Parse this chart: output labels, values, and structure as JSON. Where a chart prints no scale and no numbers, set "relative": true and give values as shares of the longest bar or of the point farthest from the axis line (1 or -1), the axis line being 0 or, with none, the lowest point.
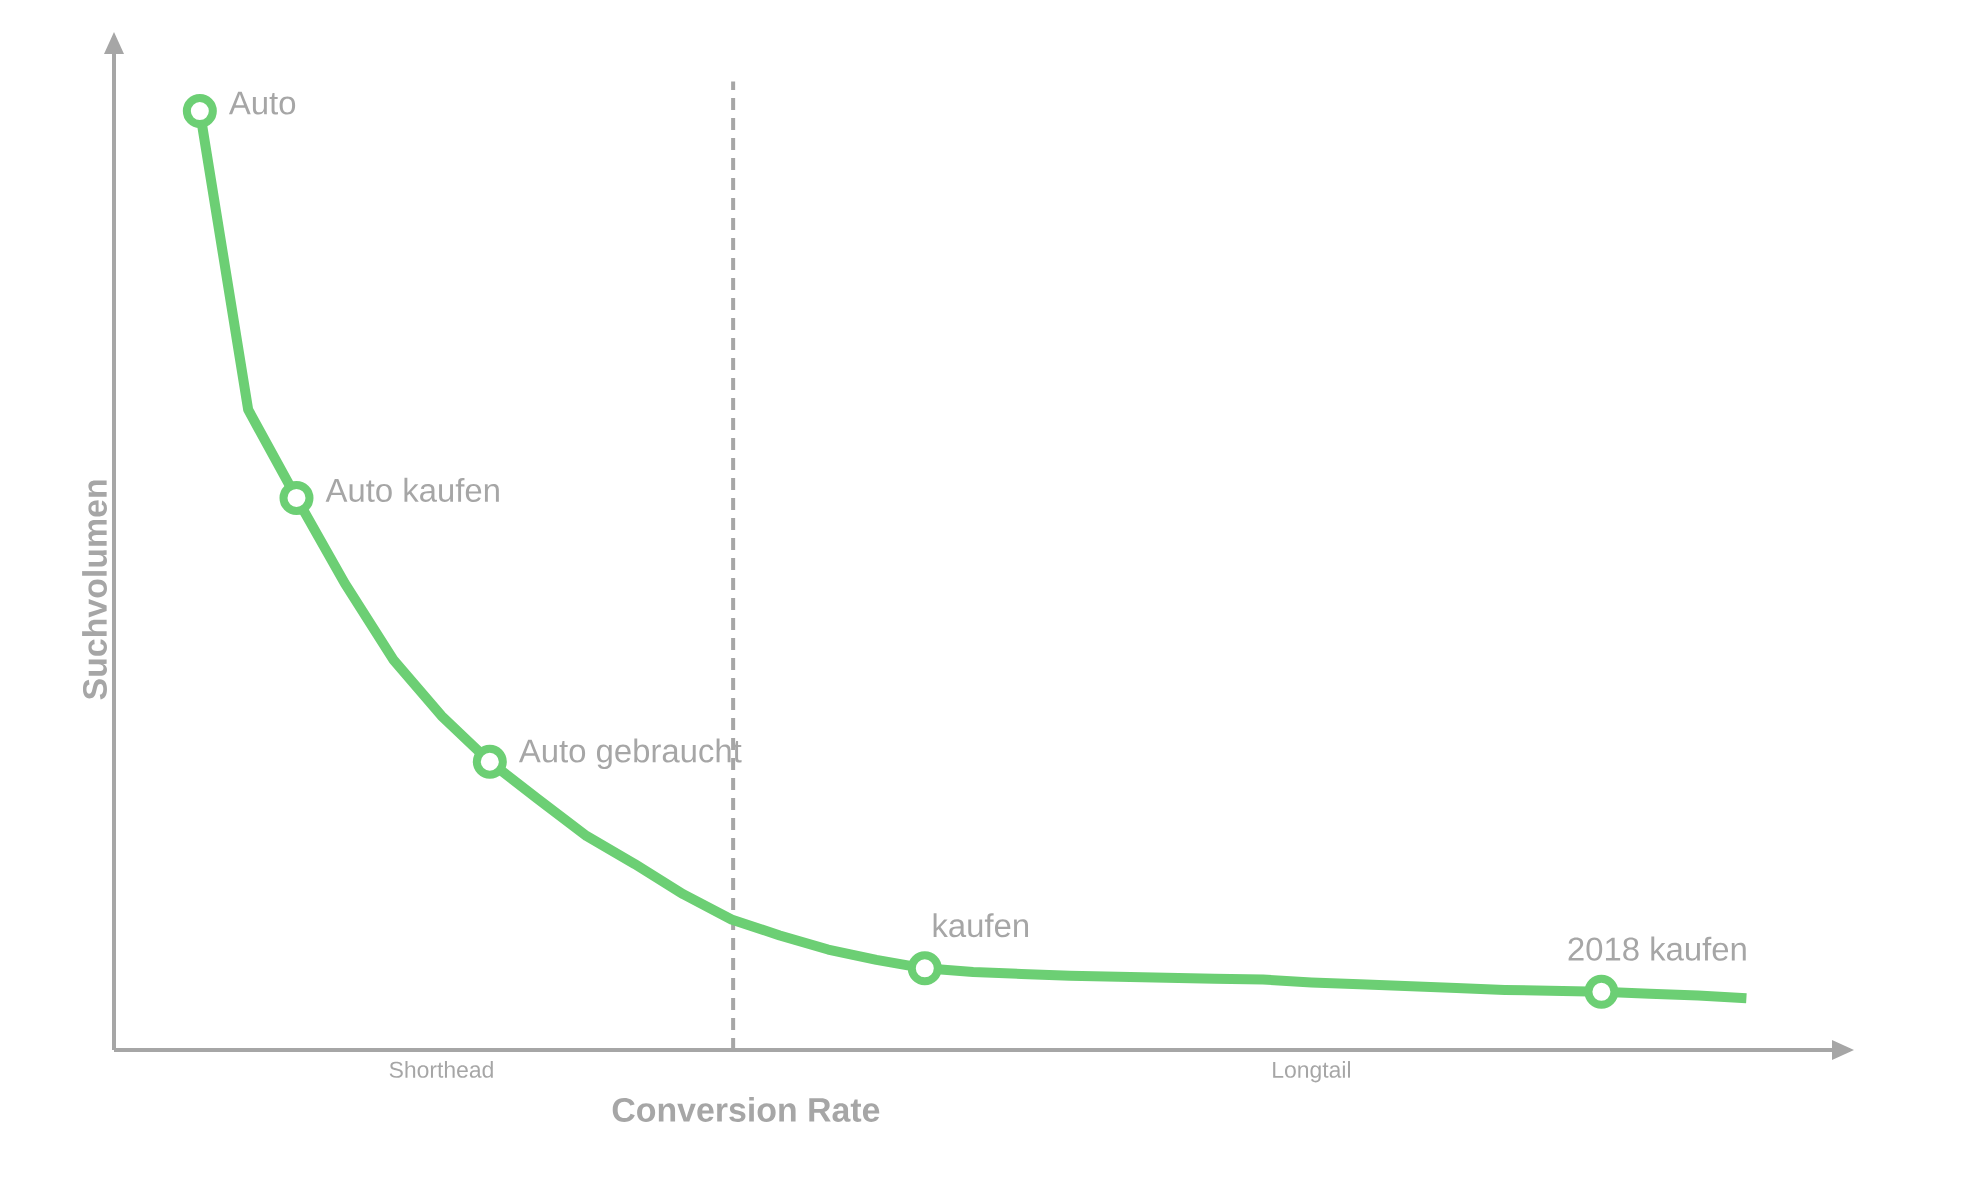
{
  "chart_data": {
    "type": "line",
    "relative": true,
    "xlabel": "Conversion Rate",
    "ylabel": "Suchvolumen",
    "categories": [
      null,
      null,
      null,
      null,
      null,
      "Shorthead",
      null,
      null,
      null,
      null,
      null,
      null,
      null,
      null,
      null,
      null,
      null,
      null,
      null,
      null,
      null,
      null,
      null,
      "Longtail",
      null,
      null,
      null,
      null,
      null,
      null,
      null,
      null,
      null
    ],
    "series": [
      {
        "color": "#6ccf74",
        "marker": "none",
        "line_style": "solid",
        "values": [
          1.0,
          0.682,
          0.588,
          0.497,
          0.416,
          0.356,
          0.307,
          0.267,
          0.228,
          0.198,
          0.166,
          0.139,
          0.122,
          0.107,
          0.096,
          0.087,
          0.083,
          0.081,
          0.079,
          0.078,
          0.077,
          0.076,
          0.075,
          0.072,
          0.07,
          0.068,
          0.066,
          0.064,
          0.063,
          0.062,
          0.06,
          0.058,
          0.055
        ]
      },
      {
        "type": "scatter",
        "color": "#6ccf74",
        "marker": "circle",
        "values": [
          1.0,
          null,
          0.588,
          null,
          null,
          null,
          0.307,
          null,
          null,
          null,
          null,
          null,
          null,
          null,
          null,
          0.087,
          null,
          null,
          null,
          null,
          null,
          null,
          null,
          null,
          null,
          null,
          null,
          null,
          null,
          0.062,
          null,
          null,
          null
        ]
      }
    ],
    "annotations": [
      "Auto",
      "Auto kaufen",
      "Auto gebraucht",
      "kaufen",
      "2018 kaufen"
    ]
  }
}
